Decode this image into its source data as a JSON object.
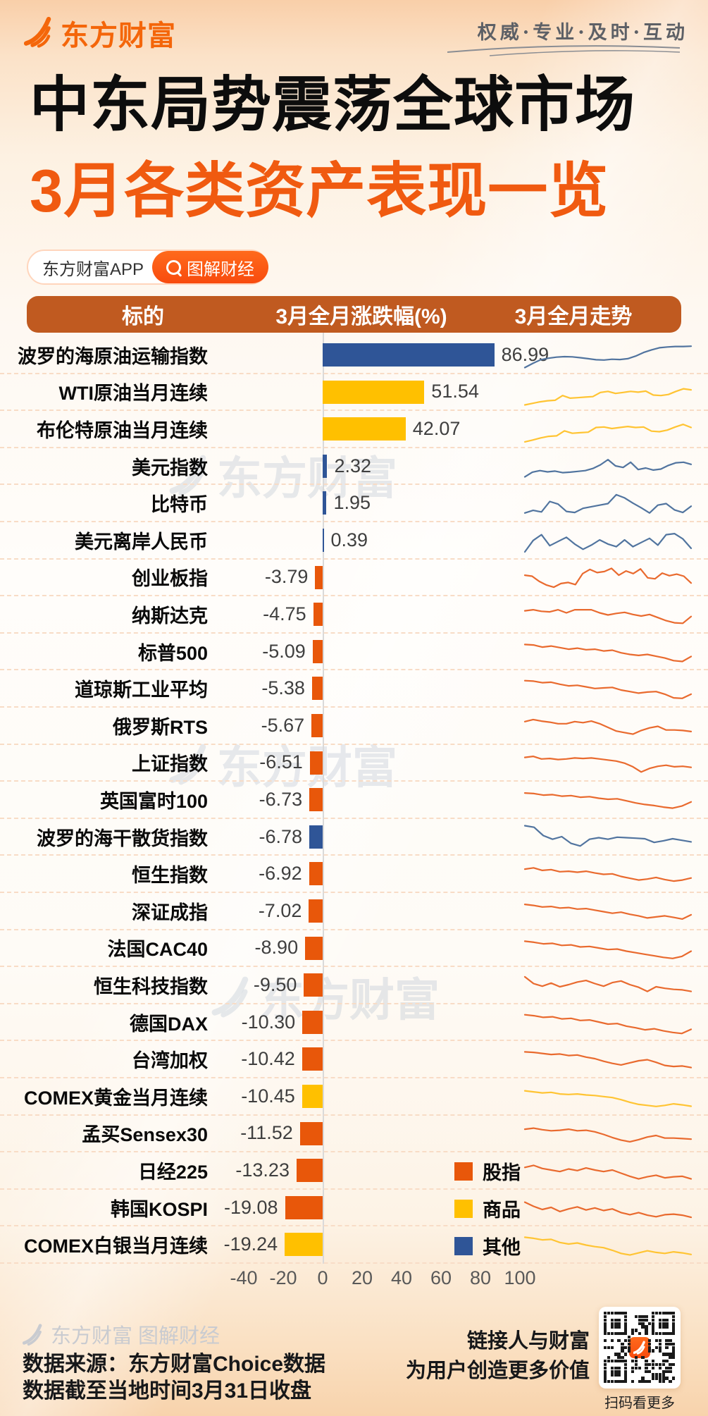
{
  "brand": {
    "logo_text": "东方财富",
    "tagline": "权威·专业·及时·互动"
  },
  "title": "中东局势震荡全球市场",
  "subtitle": "3月各类资产表现一览",
  "badges": {
    "app": "东方财富APP",
    "column": "图解财经"
  },
  "table_header": {
    "col_target": "标的",
    "col_change": "3月全月涨跌幅(%)",
    "col_trend": "3月全月走势"
  },
  "legend": [
    {
      "label": "股指",
      "color": "#E8570A"
    },
    {
      "label": "商品",
      "color": "#FFC000"
    },
    {
      "label": "其他",
      "color": "#2F5597"
    }
  ],
  "chart_data": {
    "type": "bar",
    "title": "3月各类资产表现一览",
    "xlabel": "3月全月涨跌幅(%)",
    "xlim": [
      -40,
      100
    ],
    "axis_ticks": [
      -40,
      -20,
      0,
      20,
      40,
      60,
      80,
      100
    ],
    "legend_position": "bottom-right-inside",
    "grid": false,
    "colors": {
      "股指": "#E8570A",
      "商品": "#FFC000",
      "其他": "#2F5597"
    },
    "spark_colors": {
      "股指": "#E96A2E",
      "商品": "#FFC433",
      "其他": "#51749F"
    },
    "categories": [
      "波罗的海原油运输指数",
      "WTI原油当月连续",
      "布伦特原油当月连续",
      "美元指数",
      "比特币",
      "美元离岸人民币",
      "创业板指",
      "纳斯达克",
      "标普500",
      "道琼斯工业平均",
      "俄罗斯RTS",
      "上证指数",
      "英国富时100",
      "波罗的海干散货指数",
      "恒生指数",
      "深证成指",
      "法国CAC40",
      "恒生科技指数",
      "德国DAX",
      "台湾加权",
      "COMEX黄金当月连续",
      "孟买Sensex30",
      "日经225",
      "韩国KOSPI",
      "COMEX白银当月连续"
    ],
    "values": [
      86.99,
      51.54,
      42.07,
      2.32,
      1.95,
      0.39,
      -3.79,
      -4.75,
      -5.09,
      -5.38,
      -5.67,
      -6.51,
      -6.73,
      -6.78,
      -6.92,
      -7.02,
      -8.9,
      -9.5,
      -10.3,
      -10.42,
      -10.45,
      -11.52,
      -13.23,
      -19.08,
      -19.24
    ],
    "rows": [
      {
        "label": "波罗的海原油运输指数",
        "value": "86.99",
        "category": "其他",
        "spark": [
          4,
          20,
          34,
          40,
          44,
          46,
          45,
          42,
          38,
          34,
          33,
          36,
          35,
          38,
          48,
          62,
          72,
          80,
          83,
          85,
          85,
          86
        ]
      },
      {
        "label": "WTI原油当月连续",
        "value": "51.54",
        "category": "商品",
        "spark": [
          4,
          10,
          16,
          20,
          22,
          40,
          30,
          32,
          34,
          36,
          52,
          56,
          48,
          52,
          56,
          53,
          57,
          42,
          40,
          44,
          56,
          66,
          62
        ]
      },
      {
        "label": "布伦特原油当月连续",
        "value": "42.07",
        "category": "商品",
        "spark": [
          3,
          10,
          18,
          24,
          26,
          45,
          36,
          38,
          40,
          58,
          60,
          54,
          58,
          62,
          58,
          60,
          44,
          42,
          48,
          60,
          70,
          58
        ]
      },
      {
        "label": "美元指数",
        "value": "2.32",
        "category": "其他",
        "spark": [
          12,
          30,
          36,
          31,
          34,
          28,
          30,
          33,
          36,
          44,
          58,
          78,
          54,
          48,
          68,
          40,
          46,
          38,
          42,
          56,
          66,
          68,
          60
        ]
      },
      {
        "label": "比特币",
        "value": "1.95",
        "category": "其他",
        "spark": [
          14,
          24,
          18,
          58,
          48,
          20,
          16,
          32,
          38,
          44,
          50,
          84,
          72,
          52,
          34,
          14,
          44,
          50,
          26,
          16,
          40
        ]
      },
      {
        "label": "美元离岸人民币",
        "value": "0.39",
        "category": "其他",
        "spark": [
          8,
          52,
          74,
          32,
          48,
          64,
          38,
          18,
          34,
          54,
          38,
          28,
          54,
          28,
          44,
          60,
          34,
          74,
          78,
          58,
          22
        ]
      },
      {
        "label": "创业板指",
        "value": "-3.79",
        "category": "股指",
        "spark": [
          62,
          58,
          38,
          24,
          16,
          30,
          34,
          26,
          68,
          84,
          72,
          76,
          88,
          62,
          78,
          68,
          86,
          52,
          48,
          70,
          60,
          66,
          58,
          32
        ]
      },
      {
        "label": "纳斯达克",
        "value": "-4.75",
        "category": "股指",
        "spark": [
          66,
          70,
          64,
          62,
          70,
          58,
          70,
          70,
          70,
          58,
          50,
          56,
          60,
          52,
          46,
          52,
          40,
          28,
          20,
          18,
          44
        ]
      },
      {
        "label": "标普500",
        "value": "-5.09",
        "category": "股指",
        "spark": [
          80,
          78,
          70,
          74,
          68,
          62,
          66,
          60,
          62,
          55,
          58,
          48,
          42,
          38,
          42,
          35,
          28,
          18,
          15,
          34
        ]
      },
      {
        "label": "道琼斯工业平均",
        "value": "-5.38",
        "category": "股指",
        "spark": [
          82,
          80,
          74,
          76,
          68,
          62,
          64,
          58,
          52,
          54,
          56,
          46,
          40,
          34,
          38,
          40,
          30,
          16,
          14,
          30
        ]
      },
      {
        "label": "俄罗斯RTS",
        "value": "-5.67",
        "category": "股指",
        "spark": [
          68,
          76,
          70,
          66,
          60,
          60,
          68,
          64,
          70,
          60,
          46,
          32,
          26,
          20,
          34,
          44,
          50,
          36,
          36,
          34,
          30
        ]
      },
      {
        "label": "上证指数",
        "value": "-6.51",
        "category": "股指",
        "spark": [
          74,
          78,
          68,
          70,
          66,
          68,
          72,
          70,
          72,
          68,
          64,
          60,
          52,
          38,
          18,
          32,
          40,
          44,
          38,
          40,
          36
        ]
      },
      {
        "label": "英国富时100",
        "value": "-6.73",
        "category": "股指",
        "spark": [
          78,
          76,
          70,
          72,
          66,
          68,
          62,
          64,
          58,
          54,
          56,
          48,
          40,
          34,
          30,
          24,
          20,
          28,
          44
        ]
      },
      {
        "label": "波罗的海干散货指数",
        "value": "-6.78",
        "category": "其他",
        "spark": [
          96,
          90,
          58,
          44,
          54,
          28,
          18,
          44,
          50,
          44,
          52,
          50,
          48,
          46,
          32,
          38,
          46,
          40,
          34
        ]
      },
      {
        "label": "恒生指数",
        "value": "-6.92",
        "category": "股指",
        "spark": [
          70,
          75,
          65,
          68,
          60,
          62,
          58,
          62,
          55,
          50,
          52,
          42,
          35,
          28,
          32,
          38,
          30,
          24,
          28,
          36
        ]
      },
      {
        "label": "深证成指",
        "value": "-7.02",
        "category": "股指",
        "spark": [
          78,
          74,
          68,
          70,
          64,
          66,
          60,
          62,
          56,
          50,
          44,
          48,
          40,
          34,
          26,
          30,
          34,
          28,
          22,
          38
        ]
      },
      {
        "label": "法国CAC40",
        "value": "-8.90",
        "category": "股指",
        "spark": [
          80,
          76,
          70,
          72,
          64,
          66,
          58,
          60,
          54,
          48,
          50,
          42,
          36,
          30,
          24,
          18,
          14,
          22,
          42
        ]
      },
      {
        "label": "恒生科技指数",
        "value": "-9.50",
        "category": "股指",
        "spark": [
          84,
          58,
          48,
          60,
          46,
          54,
          64,
          70,
          58,
          48,
          62,
          68,
          54,
          44,
          28,
          46,
          40,
          36,
          34,
          28
        ]
      },
      {
        "label": "德国DAX",
        "value": "-10.30",
        "category": "股指",
        "spark": [
          82,
          78,
          72,
          74,
          66,
          68,
          60,
          62,
          54,
          46,
          48,
          38,
          32,
          24,
          28,
          20,
          14,
          10,
          26
        ]
      },
      {
        "label": "台湾加权",
        "value": "-10.42",
        "category": "股指",
        "spark": [
          80,
          78,
          74,
          70,
          72,
          66,
          68,
          60,
          54,
          44,
          36,
          30,
          38,
          46,
          50,
          40,
          28,
          24,
          26,
          20
        ]
      },
      {
        "label": "COMEX黄金当月连续",
        "value": "-10.45",
        "category": "商品",
        "spark": [
          74,
          70,
          66,
          68,
          62,
          60,
          62,
          58,
          56,
          52,
          48,
          40,
          30,
          22,
          18,
          14,
          18,
          24,
          20,
          15
        ]
      },
      {
        "label": "孟买Sensex30",
        "value": "-11.52",
        "category": "股指",
        "spark": [
          70,
          74,
          68,
          64,
          66,
          70,
          64,
          66,
          60,
          50,
          38,
          28,
          22,
          30,
          40,
          46,
          36,
          36,
          34,
          32
        ]
      },
      {
        "label": "日经225",
        "value": "-13.23",
        "category": "股指",
        "spark": [
          64,
          72,
          60,
          54,
          48,
          58,
          52,
          62,
          54,
          48,
          54,
          42,
          30,
          20,
          28,
          34,
          24,
          28,
          30,
          20
        ]
      },
      {
        "label": "韩国KOSPI",
        "value": "-19.08",
        "category": "股指",
        "spark": [
          74,
          58,
          46,
          54,
          38,
          48,
          56,
          44,
          52,
          42,
          48,
          34,
          26,
          34,
          24,
          18,
          26,
          28,
          24,
          16
        ]
      },
      {
        "label": "COMEX白银当月连续",
        "value": "-19.24",
        "category": "商品",
        "spark": [
          80,
          76,
          70,
          72,
          60,
          54,
          58,
          50,
          44,
          40,
          30,
          18,
          12,
          20,
          28,
          22,
          18,
          24,
          20,
          14
        ]
      }
    ]
  },
  "watermark": {
    "text": "东方财富"
  },
  "footer": {
    "brand_line": "东方财富 图解财经",
    "source_line1": "数据来源：东方财富Choice数据",
    "source_line2": "数据截至当地时间3月31日收盘",
    "slogan_line1": "链接人与财富",
    "slogan_line2": "为用户创造更多价值",
    "qr_caption": "扫码看更多"
  }
}
